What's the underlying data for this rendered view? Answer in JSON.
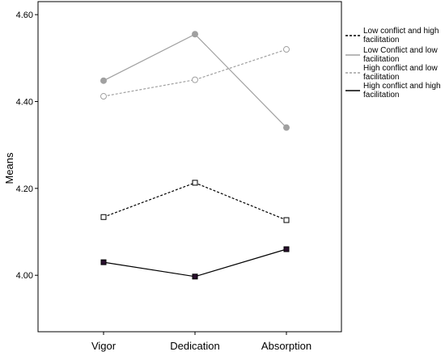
{
  "chart_data": {
    "type": "line",
    "categories": [
      "Vigor",
      "Dedication",
      "Absorption"
    ],
    "ylabel": "Means",
    "xlabel": "",
    "ylim": [
      3.87,
      4.63
    ],
    "yticks": [
      "4.00",
      "4.20",
      "4.40",
      "4.60"
    ],
    "legend_position": "right",
    "series": [
      {
        "name": "Low conflict and high facilitation",
        "name_lines": [
          "Low conflict and high",
          "facilitation"
        ],
        "values": [
          4.134,
          4.213,
          4.127
        ],
        "color": "#000000",
        "dash": "dashed",
        "marker": "open-square"
      },
      {
        "name": "Low Conflict and low facilitation",
        "name_lines": [
          "Low Conflict and low",
          "facilitation"
        ],
        "values": [
          4.448,
          4.555,
          4.34
        ],
        "color": "#a0a0a0",
        "dash": "solid",
        "marker": "filled-circle"
      },
      {
        "name": "High conflict and low facilitation",
        "name_lines": [
          "High conflict and low",
          "facilitation"
        ],
        "values": [
          4.412,
          4.45,
          4.52
        ],
        "color": "#a0a0a0",
        "dash": "dashed",
        "marker": "open-circle"
      },
      {
        "name": "High conflict and high facilitation",
        "name_lines": [
          "High conflict and high",
          "facilitation"
        ],
        "values": [
          4.03,
          3.997,
          4.06
        ],
        "color": "#000000",
        "dash": "solid",
        "marker": "filled-square"
      }
    ]
  }
}
